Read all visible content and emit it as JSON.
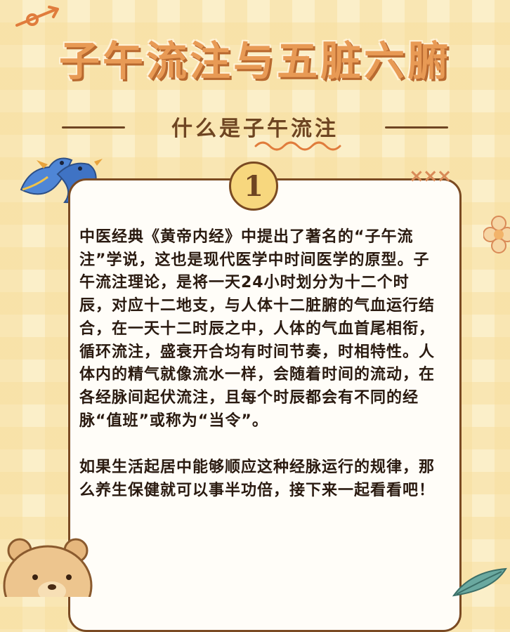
{
  "title": "子午流注与五脏六腑",
  "subtitle": "什么是子午流注",
  "card": {
    "number": "1",
    "paragraphs": [
      "中医经典《黄帝内经》中提出了著名的“子午流注”学说，这也是现代医学中时间医学的原型。子午流注理论，是将一天24小时划分为十二个时辰，对应十二地支，与人体十二脏腑的气血运行结合，在一天十二时辰之中，人体的气血首尾相衔，循环流注，盛衰开合均有时间节奏，时相特性。人体内的精气就像流水一样，会随着时间的流动，在各经脉间起伏流注，且每个时辰都会有不同的经脉“值班”或称为“当令”。",
      "如果生活起居中能够顺应这种经脉运行的规律，那么养生保健就可以事半功倍，接下来一起看看吧！"
    ]
  },
  "decor": {
    "xxx": "×××"
  },
  "colors": {
    "accent": "#e89a55",
    "brown": "#7a4a22",
    "yellow": "#f7d77e",
    "background": "#fbefc9"
  }
}
